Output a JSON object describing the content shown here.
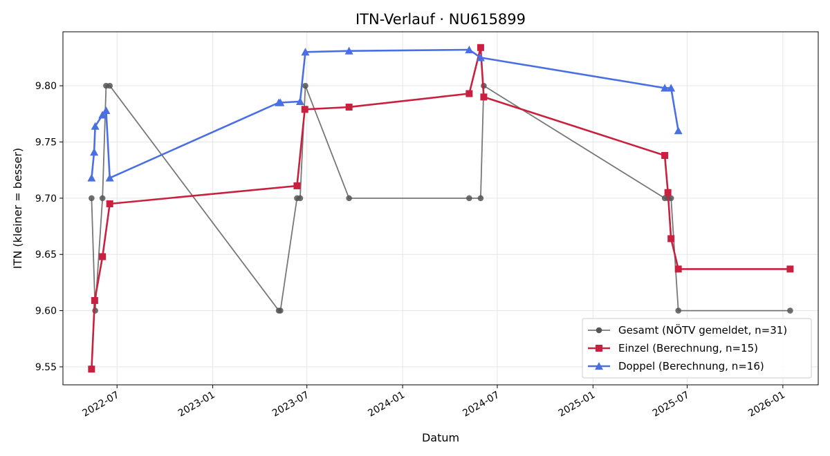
{
  "chart_data": {
    "type": "line",
    "title": "ITN-Verlauf · NU615899",
    "xlabel": "Datum",
    "ylabel": "ITN  (kleiner = besser)",
    "x_type": "date",
    "xlim": [
      "2022-03-19",
      "2026-03-10"
    ],
    "ylim": [
      9.534,
      9.848
    ],
    "x_ticks": [
      "2022-07-01",
      "2023-01-01",
      "2023-07-01",
      "2024-01-01",
      "2024-07-01",
      "2025-01-01",
      "2025-07-01",
      "2026-01-01"
    ],
    "x_tick_labels": [
      "2022-07",
      "2023-01",
      "2023-07",
      "2024-01",
      "2024-07",
      "2025-01",
      "2025-07",
      "2026-01"
    ],
    "y_ticks": [
      9.55,
      9.6,
      9.65,
      9.7,
      9.75,
      9.8
    ],
    "y_tick_labels": [
      "9.55",
      "9.60",
      "9.65",
      "9.70",
      "9.75",
      "9.80"
    ],
    "grid": true,
    "legend_position": "lower-right",
    "series": [
      {
        "name": "Gesamt (NÖTV gemeldet, n=31)",
        "color": "#555555",
        "marker": "circle",
        "points": [
          [
            "2022-05-13",
            9.7
          ],
          [
            "2022-05-20",
            9.6
          ],
          [
            "2022-06-03",
            9.7
          ],
          [
            "2022-06-10",
            9.8
          ],
          [
            "2022-06-17",
            9.8
          ],
          [
            "2023-05-08",
            9.6
          ],
          [
            "2023-05-11",
            9.6
          ],
          [
            "2023-06-12",
            9.7
          ],
          [
            "2023-06-18",
            9.7
          ],
          [
            "2023-06-28",
            9.8
          ],
          [
            "2023-09-20",
            9.7
          ],
          [
            "2024-05-08",
            9.7
          ],
          [
            "2024-05-30",
            9.7
          ],
          [
            "2024-06-05",
            9.8
          ],
          [
            "2025-05-19",
            9.7
          ],
          [
            "2025-05-25",
            9.7
          ],
          [
            "2025-05-31",
            9.7
          ],
          [
            "2025-06-14",
            9.6
          ],
          [
            "2026-01-15",
            9.6
          ]
        ]
      },
      {
        "name": "Einzel (Berechnung, n=15)",
        "color": "#c8203e",
        "marker": "square",
        "points": [
          [
            "2022-05-13",
            9.548
          ],
          [
            "2022-05-19",
            9.609
          ],
          [
            "2022-06-03",
            9.648
          ],
          [
            "2022-06-17",
            9.695
          ],
          [
            "2023-06-12",
            9.711
          ],
          [
            "2023-06-27",
            9.779
          ],
          [
            "2023-09-20",
            9.781
          ],
          [
            "2024-05-08",
            9.793
          ],
          [
            "2024-05-30",
            9.834
          ],
          [
            "2024-06-05",
            9.79
          ],
          [
            "2025-05-19",
            9.738
          ],
          [
            "2025-05-25",
            9.705
          ],
          [
            "2025-05-31",
            9.664
          ],
          [
            "2025-06-14",
            9.637
          ],
          [
            "2026-01-15",
            9.637
          ]
        ]
      },
      {
        "name": "Doppel (Berechnung, n=16)",
        "color": "#4a6fe3",
        "marker": "triangle",
        "points": [
          [
            "2022-05-13",
            9.718
          ],
          [
            "2022-05-18",
            9.741
          ],
          [
            "2022-05-20",
            9.764
          ],
          [
            "2022-06-03",
            9.774
          ],
          [
            "2022-06-10",
            9.778
          ],
          [
            "2022-06-17",
            9.718
          ],
          [
            "2023-05-08",
            9.785
          ],
          [
            "2023-05-11",
            9.785
          ],
          [
            "2023-06-18",
            9.786
          ],
          [
            "2023-06-28",
            9.83
          ],
          [
            "2023-09-20",
            9.831
          ],
          [
            "2024-05-08",
            9.832
          ],
          [
            "2024-05-30",
            9.825
          ],
          [
            "2025-05-19",
            9.798
          ],
          [
            "2025-05-31",
            9.798
          ],
          [
            "2025-06-14",
            9.76
          ]
        ]
      }
    ]
  }
}
